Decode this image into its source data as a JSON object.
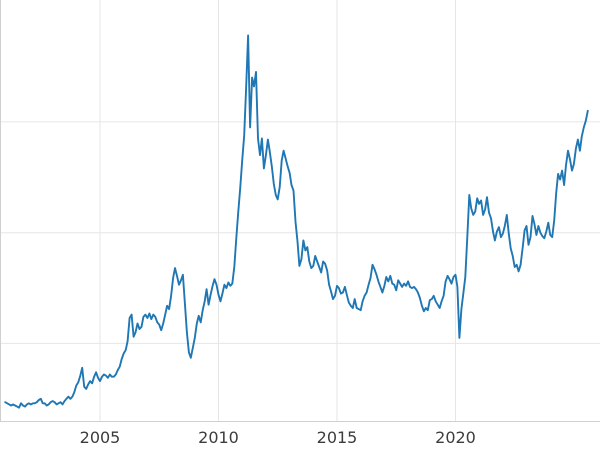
{
  "chart": {
    "line_color": "#1f77b4",
    "grid_color": "#e6e6e6",
    "spine_color": "#d0d0d0",
    "tick_label_color": "#3c3c3c",
    "background": "#ffffff"
  },
  "chart_data": {
    "type": "line",
    "title": "",
    "xlabel": "",
    "ylabel": "",
    "grid": true,
    "legend": false,
    "x_tick_labels": [
      "2005",
      "2010",
      "2015",
      "2020"
    ],
    "x_ticks": [
      2005,
      2010,
      2015,
      2020
    ],
    "y_gridline_values": [
      10,
      20,
      30
    ],
    "x_range": [
      2000.78,
      2026.1
    ],
    "y_range": [
      3.0,
      41.0
    ],
    "series": [
      {
        "x_start": 2001.0,
        "x_step": 0.0833333,
        "values": [
          4.7,
          4.6,
          4.5,
          4.4,
          4.5,
          4.4,
          4.3,
          4.2,
          4.6,
          4.4,
          4.3,
          4.5,
          4.6,
          4.5,
          4.6,
          4.6,
          4.7,
          4.9,
          5.0,
          4.6,
          4.6,
          4.4,
          4.5,
          4.7,
          4.8,
          4.7,
          4.5,
          4.6,
          4.7,
          4.5,
          4.8,
          5.0,
          5.2,
          5.0,
          5.2,
          5.6,
          6.2,
          6.5,
          7.1,
          7.8,
          6.1,
          5.9,
          6.3,
          6.6,
          6.4,
          7.0,
          7.4,
          6.9,
          6.6,
          7.0,
          7.2,
          7.1,
          6.9,
          7.2,
          7.0,
          7.0,
          7.2,
          7.6,
          7.9,
          8.6,
          9.1,
          9.4,
          10.2,
          12.3,
          12.6,
          10.6,
          11.0,
          11.8,
          11.3,
          11.5,
          12.4,
          12.6,
          12.3,
          12.7,
          12.2,
          12.6,
          12.4,
          11.9,
          11.7,
          11.2,
          11.8,
          12.6,
          13.4,
          13.1,
          14.3,
          15.9,
          16.8,
          16.1,
          15.3,
          15.7,
          16.2,
          13.6,
          11.0,
          9.2,
          8.7,
          9.6,
          10.5,
          11.8,
          12.5,
          11.9,
          13.0,
          13.8,
          14.9,
          13.5,
          14.4,
          15.2,
          15.8,
          15.3,
          14.4,
          13.8,
          14.5,
          15.3,
          15.0,
          15.5,
          15.2,
          15.4,
          16.9,
          19.5,
          21.8,
          24.0,
          26.5,
          28.8,
          33.0,
          37.8,
          29.5,
          34.0,
          33.2,
          34.5,
          28.5,
          27.0,
          28.5,
          25.8,
          27.0,
          28.4,
          27.3,
          26.0,
          24.4,
          23.4,
          23.0,
          24.1,
          26.5,
          27.4,
          26.7,
          26.0,
          25.4,
          24.3,
          23.8,
          21.0,
          19.2,
          17.0,
          17.6,
          19.3,
          18.4,
          18.7,
          17.4,
          16.8,
          17.0,
          17.9,
          17.4,
          16.9,
          16.4,
          17.4,
          17.2,
          16.6,
          15.3,
          14.7,
          14.0,
          14.3,
          15.2,
          15.0,
          14.5,
          14.6,
          15.1,
          14.4,
          13.7,
          13.4,
          13.2,
          14.0,
          13.2,
          13.1,
          13.0,
          13.8,
          14.3,
          14.6,
          15.3,
          15.9,
          17.1,
          16.7,
          16.2,
          15.6,
          15.1,
          14.6,
          15.2,
          16.0,
          15.6,
          16.1,
          15.4,
          15.3,
          14.8,
          15.7,
          15.4,
          15.1,
          15.4,
          15.2,
          15.6,
          15.1,
          15.0,
          15.1,
          14.9,
          14.6,
          14.1,
          13.4,
          12.9,
          13.2,
          13.0,
          13.9,
          14.0,
          14.3,
          13.8,
          13.5,
          13.2,
          13.8,
          14.3,
          15.6,
          16.1,
          15.8,
          15.4,
          16.0,
          16.2,
          15.1,
          10.5,
          13.1,
          14.5,
          16.0,
          19.6,
          23.4,
          22.2,
          21.6,
          21.9,
          23.1,
          22.6,
          22.9,
          21.6,
          22.1,
          23.2,
          21.8,
          21.3,
          20.1,
          19.3,
          20.1,
          20.5,
          19.6,
          19.9,
          20.6,
          21.6,
          19.9,
          18.6,
          17.9,
          16.9,
          17.1,
          16.5,
          17.1,
          18.6,
          20.2,
          20.6,
          18.9,
          19.6,
          21.5,
          20.8,
          19.8,
          20.6,
          20.0,
          19.7,
          19.5,
          20.1,
          20.9,
          19.8,
          19.6,
          21.1,
          23.6,
          25.3,
          24.8,
          25.6,
          24.3,
          26.1,
          27.4,
          26.6,
          25.6,
          26.2,
          27.6,
          28.4,
          27.4,
          28.7,
          29.5,
          30.1,
          31.0
        ]
      }
    ]
  }
}
